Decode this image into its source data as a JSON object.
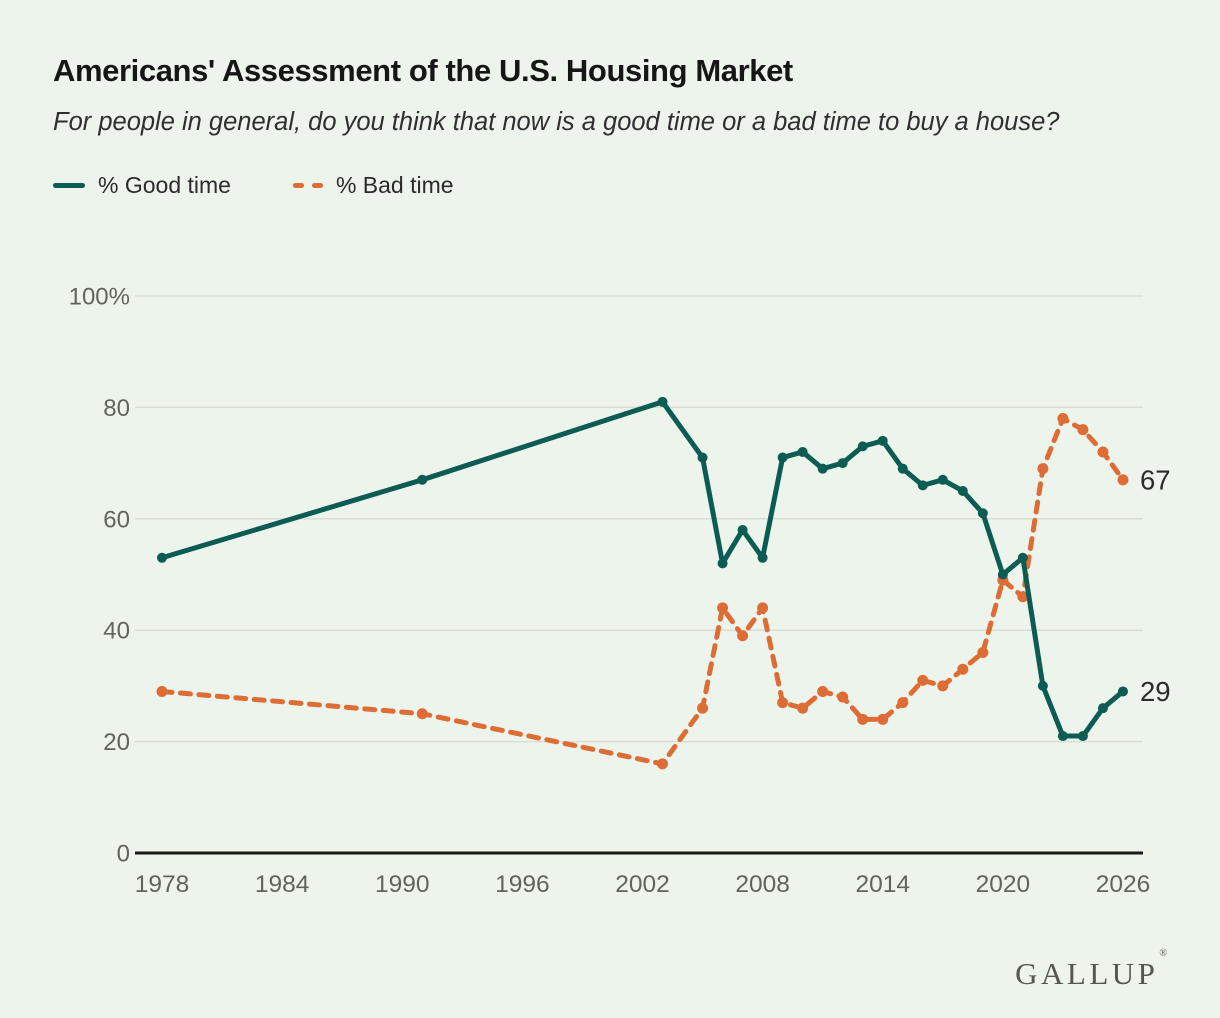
{
  "header": {
    "title": "Americans' Assessment of the U.S. Housing Market",
    "subtitle": "For people in general, do you think that now is a good time or a bad time to buy a house?"
  },
  "legend": {
    "good_label": "% Good time",
    "bad_label": "% Bad time"
  },
  "chart_data": {
    "type": "line",
    "x": [
      1978,
      1991,
      2003,
      2005,
      2006,
      2007,
      2008,
      2009,
      2010,
      2011,
      2012,
      2013,
      2014,
      2015,
      2016,
      2017,
      2018,
      2019,
      2020,
      2021,
      2022,
      2023,
      2024,
      2025,
      2026
    ],
    "series": [
      {
        "name": "% Bad time",
        "style": "dashed",
        "color": "#dd6c35",
        "values": [
          29,
          25,
          16,
          26,
          44,
          39,
          44,
          27,
          26,
          29,
          28,
          24,
          24,
          27,
          31,
          30,
          33,
          36,
          49,
          46,
          69,
          78,
          76,
          72,
          67
        ],
        "end_label": "67"
      },
      {
        "name": "% Good time",
        "style": "solid",
        "color": "#0d5c54",
        "values": [
          53,
          67,
          81,
          71,
          52,
          58,
          53,
          71,
          72,
          69,
          70,
          73,
          74,
          69,
          66,
          67,
          65,
          61,
          50,
          53,
          30,
          21,
          21,
          26,
          29
        ],
        "end_label": "29"
      }
    ],
    "title": "Americans' Assessment of the U.S. Housing Market",
    "xlabel": "",
    "ylabel": "",
    "ylim": [
      0,
      100
    ],
    "xlim": [
      1978,
      2026
    ],
    "grid": "horizontal",
    "legend_position": "top-left",
    "y_ticks": [
      {
        "value": 100,
        "label": "100%"
      },
      {
        "value": 80,
        "label": "80"
      },
      {
        "value": 60,
        "label": "60"
      },
      {
        "value": 40,
        "label": "40"
      },
      {
        "value": 20,
        "label": "20"
      },
      {
        "value": 0,
        "label": "0"
      }
    ],
    "x_ticks": [
      "1978",
      "1984",
      "1990",
      "1996",
      "2002",
      "2008",
      "2014",
      "2020",
      "2026"
    ]
  },
  "footer": {
    "logo": "GALLUP",
    "registered": "®"
  },
  "colors": {
    "background": "#edf4ec",
    "good_line": "#0d5c54",
    "bad_line": "#dd6c35",
    "gridline": "#d9ded4",
    "axis_line": "#1b1b1b",
    "tick_text": "#60645d",
    "end_label_text": "#2b2b2b"
  }
}
